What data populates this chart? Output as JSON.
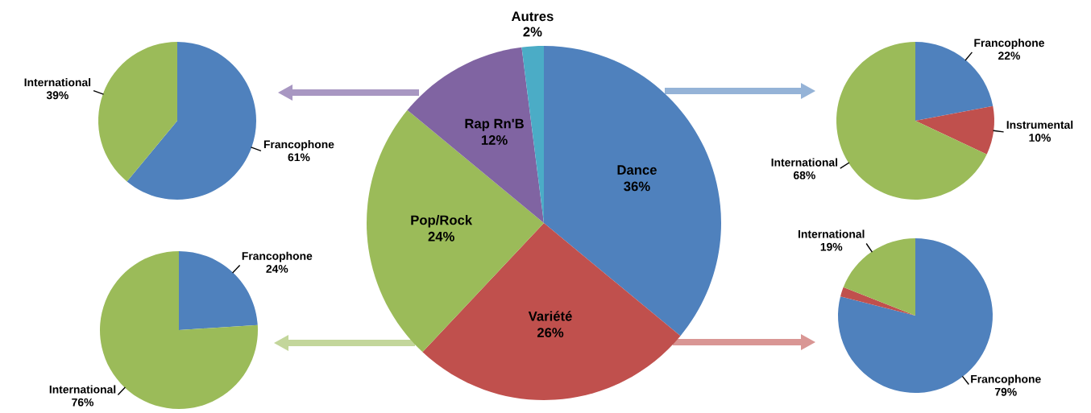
{
  "chart_data": [
    {
      "type": "pie",
      "categories": [
        "Francophone",
        "International"
      ],
      "values": [
        61,
        39
      ],
      "colors": [
        "#4f81bd",
        "#9bbb59"
      ],
      "value_labels": [
        "61%",
        "39%"
      ]
    },
    {
      "type": "pie",
      "categories": [
        "Dance",
        "Variété",
        "Pop/Rock",
        "Rap Rn'B",
        "Autres"
      ],
      "values": [
        36,
        26,
        24,
        12,
        2
      ],
      "colors": [
        "#4f81bd",
        "#c0504d",
        "#9bbb59",
        "#8064a2",
        "#4bacc6"
      ],
      "value_labels": [
        "36%",
        "26%",
        "24%",
        "12%",
        "2%"
      ]
    },
    {
      "type": "pie",
      "categories": [
        "Francophone",
        "Instrumental",
        "International"
      ],
      "values": [
        22,
        10,
        68
      ],
      "colors": [
        "#4f81bd",
        "#c0504d",
        "#9bbb59"
      ],
      "value_labels": [
        "22%",
        "10%",
        "68%"
      ]
    },
    {
      "type": "pie",
      "categories": [
        "Francophone",
        "International"
      ],
      "values": [
        24,
        76
      ],
      "colors": [
        "#4f81bd",
        "#9bbb59"
      ],
      "value_labels": [
        "24%",
        "76%"
      ]
    },
    {
      "type": "pie",
      "categories": [
        "Francophone",
        null,
        "International"
      ],
      "values": [
        79,
        2,
        19
      ],
      "colors": [
        "#4f81bd",
        "#c0504d",
        "#9bbb59"
      ],
      "value_labels": [
        "79%",
        null,
        "19%"
      ]
    }
  ]
}
